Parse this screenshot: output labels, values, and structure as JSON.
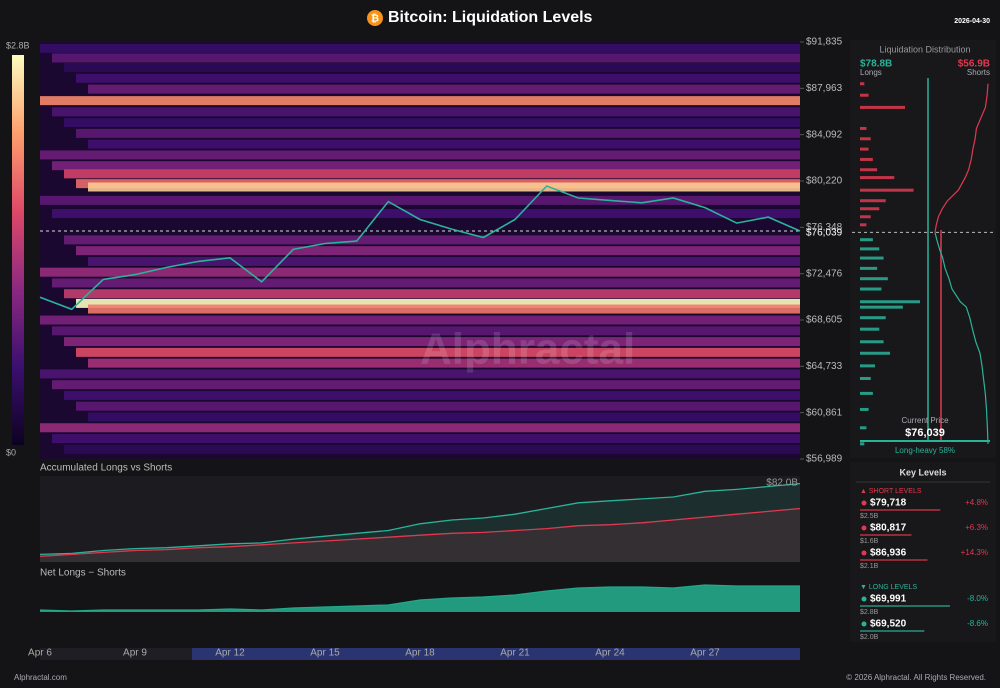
{
  "title": "Bitcoin: Liquidation Levels",
  "date": "2026-04-30",
  "chart_data": [
    {
      "type": "liquidation-heatmap",
      "categories": [
        "Apr 6",
        null,
        null,
        "Apr 9",
        null,
        null,
        "Apr 12",
        null,
        null,
        "Apr 15",
        null,
        null,
        "Apr 18",
        null,
        null,
        "Apr 21",
        null,
        null,
        "Apr 24",
        null,
        null,
        "Apr 27",
        null,
        null,
        null
      ],
      "values": [
        70500,
        69500,
        72000,
        72400,
        73000,
        73500,
        73800,
        71800,
        74500,
        75000,
        75200,
        78500,
        77000,
        76200,
        75500,
        77000,
        79800,
        78800,
        78600,
        78400,
        78800,
        78000,
        76700,
        77200,
        76039
      ],
      "color": "#2bb39a",
      "levels": {
        "prices": [
          91300,
          90500,
          89700,
          88800,
          87900,
          86936,
          86000,
          85100,
          84200,
          83300,
          82400,
          81500,
          80817,
          80000,
          79718,
          78600,
          77500,
          75300,
          74400,
          73500,
          72600,
          71700,
          70800,
          69991,
          69520,
          68600,
          67700,
          66800,
          65900,
          65000,
          64100,
          63200,
          62300,
          61400,
          60500,
          59600,
          58700,
          57800
        ],
        "values": [
          0.5,
          0.8,
          0.4,
          0.6,
          0.9,
          2.1,
          0.7,
          0.5,
          0.8,
          0.6,
          0.9,
          1.0,
          1.6,
          1.9,
          2.5,
          0.8,
          0.6,
          0.9,
          1.1,
          0.7,
          1.2,
          0.9,
          1.5,
          2.8,
          2.0,
          1.0,
          0.8,
          1.1,
          1.7,
          1.3,
          0.7,
          0.9,
          0.6,
          0.8,
          0.5,
          1.2,
          0.6,
          0.4
        ]
      },
      "zlim": [
        0,
        2.8
      ],
      "zticks": [
        {
          "value": 2.8,
          "label": "$2.8B"
        },
        {
          "value": 0,
          "label": "$0"
        }
      ],
      "ylim": [
        56989,
        91835
      ],
      "yticks": [
        {
          "value": 91835,
          "label": "$91,835"
        },
        {
          "value": 87963,
          "label": "$87,963"
        },
        {
          "value": 84092,
          "label": "$84,092"
        },
        {
          "value": 80220,
          "label": "$80,220"
        },
        {
          "value": 76348,
          "label": "$76,348"
        },
        {
          "value": 72476,
          "label": "$72,476"
        },
        {
          "value": 68605,
          "label": "$68,605"
        },
        {
          "value": 64733,
          "label": "$64,733"
        },
        {
          "value": 60861,
          "label": "$60,861"
        },
        {
          "value": 56989,
          "label": "$56,989"
        }
      ],
      "current_price": {
        "value": 76039,
        "label": "$76,039"
      },
      "watermark": "Alphractal"
    },
    {
      "type": "area",
      "title": "Accumulated Longs vs Shorts",
      "series": [
        {
          "color": "#2bb39a",
          "values": [
            8,
            9,
            12,
            14,
            15,
            17,
            19,
            20,
            24,
            27,
            30,
            33,
            40,
            44,
            46,
            50,
            56,
            62,
            64,
            66,
            68,
            74,
            76,
            79,
            82
          ]
        },
        {
          "color": "#e0394f",
          "values": [
            6,
            8,
            10,
            12,
            13,
            15,
            16,
            18,
            20,
            22,
            24,
            26,
            28,
            30,
            31,
            33,
            35,
            38,
            39,
            41,
            44,
            47,
            50,
            53,
            56
          ]
        }
      ],
      "ylim": [
        0,
        90
      ],
      "end_label": "$82.0B"
    },
    {
      "type": "area",
      "title": "Net Longs − Shorts",
      "values": [
        2,
        1,
        2,
        2,
        2,
        2,
        3,
        2,
        4,
        5,
        6,
        7,
        12,
        14,
        15,
        17,
        21,
        24,
        25,
        25,
        24,
        27,
        26,
        26,
        26
      ],
      "color": "#22a88a",
      "ylim": [
        0,
        30
      ]
    },
    {
      "type": "distribution",
      "title": "Liquidation Distribution",
      "longs": {
        "name": "Longs",
        "color": "#2bb39a",
        "total": {
          "value": 78.8,
          "label": "$78.8B"
        },
        "prices": [
          75400,
          74600,
          73800,
          72900,
          72000,
          71100,
          69991,
          69520,
          68600,
          67600,
          66500,
          65500,
          64400,
          63300,
          62000,
          60600,
          59000,
          57600
        ],
        "values": [
          0.6,
          0.9,
          1.1,
          0.8,
          1.3,
          1.0,
          2.8,
          2.0,
          1.2,
          0.9,
          1.1,
          1.4,
          0.7,
          0.5,
          0.6,
          0.4,
          0.3,
          0.2
        ]
      },
      "shorts": {
        "name": "Shorts",
        "color": "#e0394f",
        "total": {
          "value": 56.9,
          "label": "$56.9B"
        },
        "prices": [
          76700,
          77400,
          78100,
          78800,
          79718,
          80817,
          81500,
          82400,
          83300,
          84200,
          85100,
          86936,
          88000,
          89000
        ],
        "values": [
          0.3,
          0.5,
          0.9,
          1.2,
          2.5,
          1.6,
          0.8,
          0.6,
          0.4,
          0.5,
          0.3,
          2.1,
          0.4,
          0.2
        ]
      },
      "xlim": [
        0,
        2.8
      ],
      "ylim": [
        57500,
        89500
      ],
      "current_title": "Current Price",
      "current_price": {
        "value": 76039,
        "label": "$76,039"
      },
      "bias": "Long-heavy 58%"
    }
  ],
  "key_levels": {
    "title": "Key Levels",
    "short_title": "▲ SHORT LEVELS",
    "short": [
      {
        "price": "$79,718",
        "change": "+4.8%",
        "size": {
          "value": 2.5,
          "label": "$2.5B"
        }
      },
      {
        "price": "$80,817",
        "change": "+6.3%",
        "size": {
          "value": 1.6,
          "label": "$1.6B"
        }
      },
      {
        "price": "$86,936",
        "change": "+14.3%",
        "size": {
          "value": 2.1,
          "label": "$2.1B"
        }
      }
    ],
    "long_title": "▼ LONG LEVELS",
    "long": [
      {
        "price": "$69,991",
        "change": "-8.0%",
        "size": {
          "value": 2.8,
          "label": "$2.8B"
        }
      },
      {
        "price": "$69,520",
        "change": "-8.6%",
        "size": {
          "value": 2.0,
          "label": "$2.0B"
        }
      }
    ]
  },
  "footer": {
    "left": "Alphractal.com",
    "right": "© 2026 Alphractal. All Rights Reserved."
  }
}
